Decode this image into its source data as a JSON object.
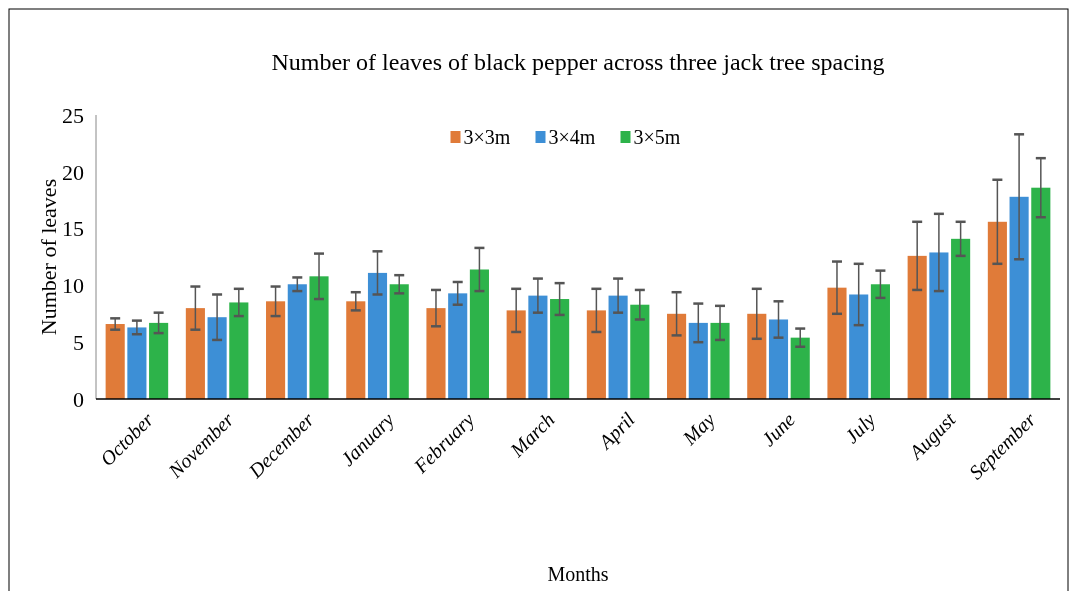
{
  "chart_data": {
    "type": "bar",
    "title": "Number of leaves  of black pepper across three jack tree spacing",
    "xlabel": "Months",
    "ylabel": "Number of leaves",
    "categories": [
      "October",
      "November",
      "December",
      "January",
      "February",
      "March",
      "April",
      "May",
      "June",
      "July",
      "August",
      "September"
    ],
    "series": [
      {
        "name": "3×3m",
        "color": "#e07b39",
        "values": [
          6.6,
          8.0,
          8.6,
          8.6,
          8.0,
          7.8,
          7.8,
          7.5,
          7.5,
          9.8,
          12.6,
          15.6
        ],
        "errors": [
          0.5,
          1.9,
          1.3,
          0.8,
          1.6,
          1.9,
          1.9,
          1.9,
          2.2,
          2.3,
          3.0,
          3.7
        ]
      },
      {
        "name": "3×4m",
        "color": "#3d8fd6",
        "values": [
          6.3,
          7.2,
          10.1,
          11.1,
          9.3,
          9.1,
          9.1,
          6.7,
          7.0,
          9.2,
          12.9,
          17.8
        ],
        "errors": [
          0.6,
          2.0,
          0.6,
          1.9,
          1.0,
          1.5,
          1.5,
          1.7,
          1.6,
          2.7,
          3.4,
          5.5
        ]
      },
      {
        "name": "3×5m",
        "color": "#2db34a",
        "values": [
          6.7,
          8.5,
          10.8,
          10.1,
          11.4,
          8.8,
          8.3,
          6.7,
          5.4,
          10.1,
          14.1,
          18.6
        ],
        "errors": [
          0.9,
          1.2,
          2.0,
          0.8,
          1.9,
          1.4,
          1.3,
          1.5,
          0.8,
          1.2,
          1.5,
          2.6
        ]
      }
    ],
    "ylim": [
      0,
      25
    ],
    "yticks": [
      0,
      5,
      10,
      15,
      20,
      25
    ],
    "grid": false,
    "legend": "top"
  }
}
